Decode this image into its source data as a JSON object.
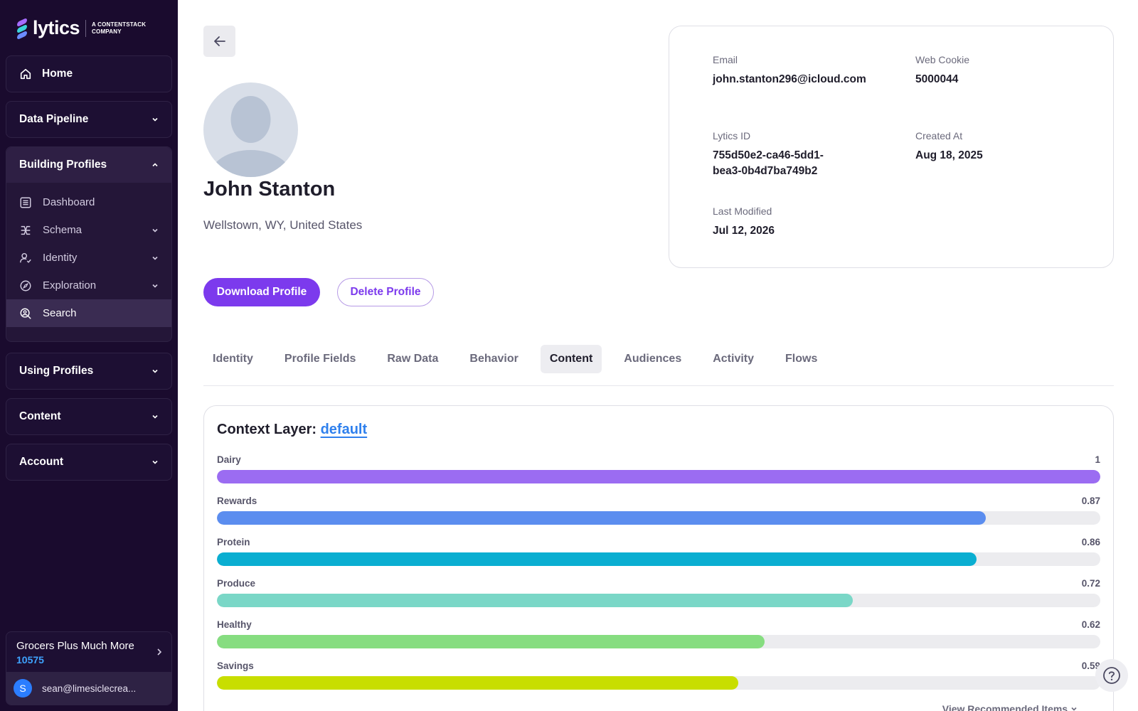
{
  "brand": {
    "name": "lytics",
    "tagline_line1": "A CONTENTSTACK",
    "tagline_line2": "COMPANY"
  },
  "sidebar": {
    "home": "Home",
    "sections": [
      {
        "label": "Data Pipeline"
      },
      {
        "label": "Building Profiles"
      },
      {
        "label": "Using Profiles"
      },
      {
        "label": "Content"
      },
      {
        "label": "Account"
      }
    ],
    "building_items": [
      {
        "label": "Dashboard"
      },
      {
        "label": "Schema"
      },
      {
        "label": "Identity"
      },
      {
        "label": "Exploration"
      },
      {
        "label": "Search"
      }
    ],
    "account": {
      "name": "Grocers Plus Much More",
      "id": "10575",
      "user_initial": "S",
      "user_email": "sean@limesiclecrea..."
    }
  },
  "profile": {
    "name": "John Stanton",
    "location": "Wellstown, WY, United States",
    "download_label": "Download Profile",
    "delete_label": "Delete Profile"
  },
  "info": {
    "email_label": "Email",
    "email_value": "john.stanton296@icloud.com",
    "cookie_label": "Web Cookie",
    "cookie_value": "5000044",
    "lytics_id_label": "Lytics ID",
    "lytics_id_value": "755d50e2-ca46-5dd1-bea3-0b4d7ba749b2",
    "created_label": "Created At",
    "created_value": "Aug 18, 2025",
    "modified_label": "Last Modified",
    "modified_value": "Jul 12, 2026"
  },
  "tabs": [
    "Identity",
    "Profile Fields",
    "Raw Data",
    "Behavior",
    "Content",
    "Audiences",
    "Activity",
    "Flows"
  ],
  "content": {
    "title": "Context Layer:",
    "layer_link": "default",
    "bars": [
      {
        "label": "Dairy",
        "value": 1,
        "display": "1",
        "color": "#9b6cf2"
      },
      {
        "label": "Rewards",
        "value": 0.87,
        "display": "0.87",
        "color": "#5b8def"
      },
      {
        "label": "Protein",
        "value": 0.86,
        "display": "0.86",
        "color": "#0aaed1"
      },
      {
        "label": "Produce",
        "value": 0.72,
        "display": "0.72",
        "color": "#7ad7c7"
      },
      {
        "label": "Healthy",
        "value": 0.62,
        "display": "0.62",
        "color": "#86dd80"
      },
      {
        "label": "Savings",
        "value": 0.59,
        "display": "0.59",
        "color": "#c8de00"
      }
    ],
    "view_more": "View Recommended Items"
  }
}
